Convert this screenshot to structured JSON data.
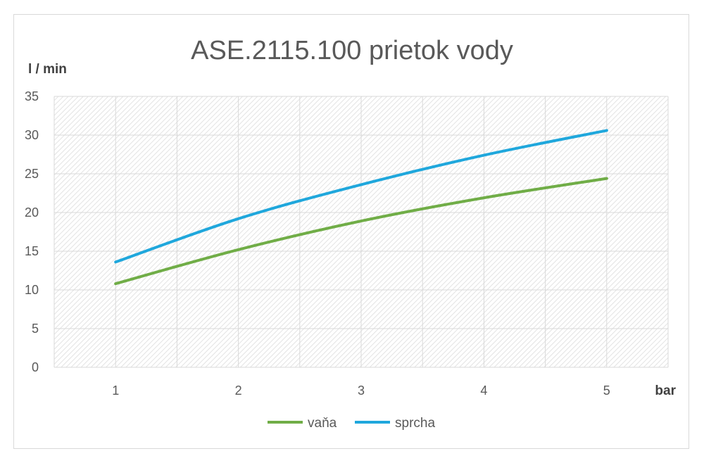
{
  "chart_data": {
    "type": "line",
    "title": "ASE.2115.100 prietok vody",
    "ylabel": "l / min",
    "xlabel": "bar",
    "categories": [
      "1",
      "2",
      "3",
      "4",
      "5"
    ],
    "ylim": [
      0,
      35
    ],
    "yticks": [
      "0",
      "5",
      "10",
      "15",
      "20",
      "25",
      "30",
      "35"
    ],
    "grid": true,
    "legend_position": "bottom",
    "series": [
      {
        "name": "vaňa",
        "values": [
          10.8,
          15.2,
          18.9,
          21.9,
          24.4
        ],
        "color": "#70ad47"
      },
      {
        "name": "sprcha",
        "values": [
          13.6,
          19.2,
          23.6,
          27.4,
          30.6
        ],
        "color": "#1fa7dc"
      }
    ]
  }
}
